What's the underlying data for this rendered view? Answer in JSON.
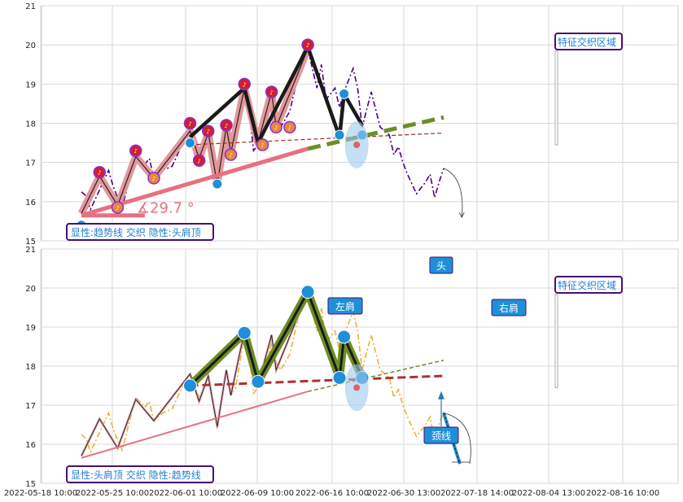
{
  "chart_data": [
    {
      "type": "line",
      "panel": "top",
      "ylim": [
        15,
        21
      ],
      "yticks": [
        15,
        16,
        17,
        18,
        19,
        20,
        21
      ],
      "xticks": [
        "2022-05-18 10:00",
        "2022-05-25 10:00",
        "2022-06-01 10:00",
        "2022-06-09 10:00",
        "2022-06-16 10:00",
        "2022-06-30 13:00",
        "2022-07-18 14:00",
        "2022-08-04 13:00",
        "2022-08-16 10:00"
      ],
      "caption": "显性:趋势线 交织 隐性:头肩顶",
      "feature_label": "特征交织区域",
      "angle_label": "∡29.7 °",
      "price_dashdot": [
        [
          0,
          16.25
        ],
        [
          0.5,
          16.15
        ],
        [
          1,
          15.8
        ],
        [
          2,
          16.3
        ],
        [
          3,
          16.8
        ],
        [
          3.5,
          16.4
        ],
        [
          4,
          16.1
        ],
        [
          4.5,
          15.85
        ],
        [
          5,
          16.3
        ],
        [
          6,
          17.2
        ],
        [
          7,
          16.95
        ],
        [
          7.5,
          17.1
        ],
        [
          8,
          16.6
        ],
        [
          9,
          16.8
        ],
        [
          10,
          16.9
        ],
        [
          11,
          17.4
        ],
        [
          12,
          17.8
        ],
        [
          12.5,
          17.5
        ],
        [
          13,
          17.2
        ],
        [
          14,
          17.7
        ],
        [
          15,
          16.4
        ],
        [
          15.5,
          17.2
        ],
        [
          16,
          17.9
        ],
        [
          16.5,
          17.3
        ],
        [
          17,
          17.4
        ],
        [
          18,
          18.8
        ],
        [
          18.5,
          18.4
        ],
        [
          19,
          17.3
        ],
        [
          20,
          17.6
        ],
        [
          21,
          18.6
        ],
        [
          21.5,
          18.1
        ],
        [
          22,
          17.9
        ],
        [
          23,
          18.3
        ],
        [
          24,
          19.3
        ],
        [
          25,
          19.9
        ],
        [
          26,
          18.9
        ],
        [
          26.5,
          19.5
        ],
        [
          27,
          18.6
        ],
        [
          28,
          18.9
        ],
        [
          28.5,
          18.4
        ],
        [
          29,
          18.8
        ],
        [
          30,
          19.4
        ],
        [
          30.5,
          18.9
        ],
        [
          31,
          17.9
        ],
        [
          32,
          18.8
        ],
        [
          33,
          17.9
        ],
        [
          34,
          17.7
        ],
        [
          34.5,
          17.2
        ],
        [
          35,
          17.4
        ],
        [
          35.5,
          17.0
        ],
        [
          36,
          16.7
        ],
        [
          37,
          16.2
        ],
        [
          38,
          16.5
        ],
        [
          38.5,
          16.7
        ],
        [
          39,
          16.1
        ],
        [
          39.5,
          16.5
        ],
        [
          40,
          16.85
        ]
      ],
      "wave_path": [
        [
          0,
          15.7
        ],
        [
          2,
          16.65
        ],
        [
          4,
          15.9
        ],
        [
          6,
          17.15
        ],
        [
          8,
          16.6
        ],
        [
          12,
          17.8
        ],
        [
          13,
          17.1
        ],
        [
          14,
          17.75
        ],
        [
          15,
          16.45
        ],
        [
          16,
          17.9
        ],
        [
          16.5,
          17.25
        ],
        [
          18,
          18.9
        ],
        [
          19.5,
          17.5
        ],
        [
          21,
          18.8
        ],
        [
          21.5,
          17.9
        ],
        [
          25,
          19.9
        ]
      ],
      "black_path": [
        [
          12,
          17.65
        ],
        [
          18,
          18.9
        ],
        [
          19.5,
          17.5
        ],
        [
          25,
          19.95
        ],
        [
          28.5,
          17.65
        ],
        [
          29,
          18.75
        ],
        [
          31,
          17.95
        ]
      ],
      "trendline_solid": {
        "from": [
          0,
          15.65
        ],
        "to": [
          25,
          17.35
        ]
      },
      "trendline_dashed": {
        "from": [
          25,
          17.35
        ],
        "to": [
          40,
          18.15
        ]
      },
      "neckline_dashed": {
        "from": [
          12,
          17.45
        ],
        "to": [
          40,
          17.75
        ]
      },
      "angle_base": {
        "from": [
          0,
          15.65
        ],
        "to": [
          7,
          15.65
        ]
      },
      "markers_up": [
        [
          2,
          16.75
        ],
        [
          6,
          17.3
        ],
        [
          12,
          18.0
        ],
        [
          13,
          17.05
        ],
        [
          14,
          17.8
        ],
        [
          16,
          17.95
        ],
        [
          18,
          19.0
        ],
        [
          21,
          18.8
        ],
        [
          25,
          20.0
        ]
      ],
      "markers_down": [
        [
          4,
          15.85
        ],
        [
          8,
          16.6
        ],
        [
          16.5,
          17.2
        ],
        [
          20,
          17.45
        ],
        [
          21.5,
          17.9
        ],
        [
          23,
          17.9
        ]
      ],
      "blue_points": [
        [
          0,
          15.4
        ],
        [
          12,
          17.5
        ],
        [
          15,
          16.45
        ],
        [
          28.5,
          17.7
        ],
        [
          29,
          18.75
        ],
        [
          31,
          17.7
        ]
      ],
      "feature_ellipse": {
        "center": [
          30.4,
          17.45
        ],
        "rx": 1.3,
        "ry": 0.6
      },
      "arrow_path": [
        [
          40,
          16.85
        ],
        [
          41.5,
          16.2
        ],
        [
          42,
          15.6
        ]
      ]
    },
    {
      "type": "line",
      "panel": "bottom",
      "ylim": [
        15,
        21
      ],
      "yticks": [
        15,
        16,
        17,
        18,
        19,
        20,
        21
      ],
      "xticks": [
        "2022-05-18 10:00",
        "2022-05-25 10:00",
        "2022-06-01 10:00",
        "2022-06-09 10:00",
        "2022-06-16 10:00",
        "2022-06-30 13:00",
        "2022-07-18 14:00",
        "2022-08-04 13:00",
        "2022-08-16 10:00"
      ],
      "caption": "显性:头肩顶 交织 隐性:趋势线",
      "feature_label": "特征交织区域",
      "labels": {
        "head": "头",
        "left_shoulder": "左肩",
        "right_shoulder": "右肩",
        "neckline": "颈线"
      },
      "price_dashdot": [
        [
          0,
          16.25
        ],
        [
          0.5,
          16.15
        ],
        [
          1,
          15.8
        ],
        [
          2,
          16.3
        ],
        [
          3,
          16.8
        ],
        [
          3.5,
          16.4
        ],
        [
          4,
          16.1
        ],
        [
          4.5,
          15.85
        ],
        [
          5,
          16.3
        ],
        [
          6,
          17.2
        ],
        [
          7,
          16.95
        ],
        [
          7.5,
          17.1
        ],
        [
          8,
          16.6
        ],
        [
          9,
          16.8
        ],
        [
          10,
          16.9
        ],
        [
          11,
          17.4
        ],
        [
          12,
          17.8
        ],
        [
          12.5,
          17.5
        ],
        [
          13,
          17.2
        ],
        [
          14,
          17.7
        ],
        [
          15,
          16.4
        ],
        [
          15.5,
          17.2
        ],
        [
          16,
          17.9
        ],
        [
          16.5,
          17.3
        ],
        [
          17,
          17.4
        ],
        [
          18,
          18.8
        ],
        [
          18.5,
          18.4
        ],
        [
          19,
          17.3
        ],
        [
          20,
          17.6
        ],
        [
          21,
          18.6
        ],
        [
          21.5,
          18.1
        ],
        [
          22,
          17.9
        ],
        [
          23,
          18.3
        ],
        [
          24,
          19.3
        ],
        [
          25,
          19.9
        ],
        [
          26,
          18.9
        ],
        [
          26.5,
          19.5
        ],
        [
          27,
          18.6
        ],
        [
          28,
          18.9
        ],
        [
          28.5,
          18.4
        ],
        [
          29,
          18.8
        ],
        [
          30,
          19.4
        ],
        [
          30.5,
          18.9
        ],
        [
          31,
          17.9
        ],
        [
          32,
          18.8
        ],
        [
          33,
          17.9
        ],
        [
          34,
          17.7
        ],
        [
          34.5,
          17.2
        ],
        [
          35,
          17.4
        ],
        [
          35.5,
          17.0
        ],
        [
          36,
          16.7
        ],
        [
          37,
          16.2
        ],
        [
          38,
          16.5
        ],
        [
          38.5,
          16.7
        ],
        [
          39,
          16.1
        ],
        [
          39.5,
          16.5
        ],
        [
          40,
          16.85
        ]
      ],
      "thin_path": [
        [
          0,
          15.7
        ],
        [
          2,
          16.65
        ],
        [
          4,
          15.9
        ],
        [
          6,
          17.15
        ],
        [
          8,
          16.6
        ],
        [
          12,
          17.8
        ],
        [
          13,
          17.1
        ],
        [
          14,
          17.75
        ],
        [
          15,
          16.45
        ],
        [
          16,
          17.9
        ],
        [
          16.5,
          17.25
        ],
        [
          18,
          18.9
        ],
        [
          19.5,
          17.5
        ],
        [
          21,
          18.8
        ],
        [
          21.5,
          17.9
        ],
        [
          25,
          19.9
        ]
      ],
      "hs_path": [
        [
          12,
          17.5
        ],
        [
          18,
          18.85
        ],
        [
          19.5,
          17.6
        ],
        [
          25,
          19.9
        ],
        [
          28.5,
          17.7
        ],
        [
          29,
          18.75
        ],
        [
          31,
          17.7
        ]
      ],
      "trendline_solid": {
        "from": [
          0,
          15.65
        ],
        "to": [
          25,
          17.35
        ]
      },
      "trendline_dashed": {
        "from": [
          25,
          17.35
        ],
        "to": [
          40,
          18.15
        ]
      },
      "neckline_dashed": {
        "from": [
          12,
          17.5
        ],
        "to": [
          40,
          17.75
        ]
      },
      "blue_points": [
        [
          12,
          17.5
        ],
        [
          18,
          18.85
        ],
        [
          19.5,
          17.6
        ],
        [
          25,
          19.9
        ],
        [
          28.5,
          17.7
        ],
        [
          29,
          18.75
        ],
        [
          31,
          17.7
        ]
      ],
      "feature_ellipse": {
        "center": [
          30.4,
          17.45
        ],
        "rx": 1.3,
        "ry": 0.6
      },
      "blue_diag": {
        "from": [
          40,
          16.8
        ],
        "to": [
          41.8,
          15.5
        ]
      }
    }
  ]
}
